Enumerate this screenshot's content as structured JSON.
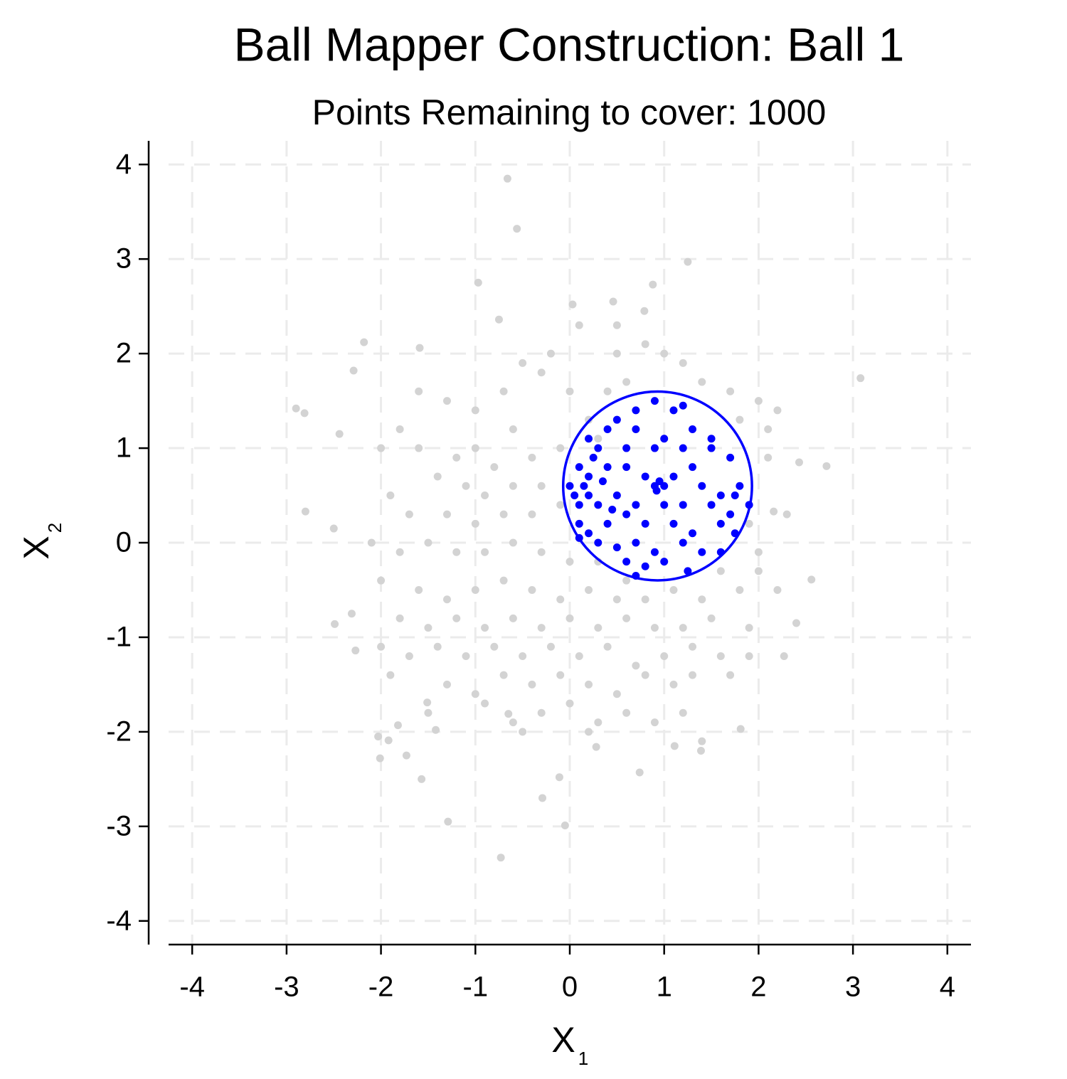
{
  "chart_data": {
    "type": "scatter",
    "title": "Ball Mapper Construction: Ball 1",
    "subtitle": "Points Remaining to cover: 1000",
    "xlabel": {
      "text": "X",
      "subscript": "1"
    },
    "ylabel": {
      "text": "X",
      "subscript": "2"
    },
    "xlim": [
      -4.25,
      4.25
    ],
    "ylim": [
      -4.25,
      4.25
    ],
    "xticks": [
      -4,
      -3,
      -2,
      -1,
      0,
      1,
      2,
      3,
      4
    ],
    "yticks": [
      -4,
      -3,
      -2,
      -1,
      0,
      1,
      2,
      3,
      4
    ],
    "grid": true,
    "series": [
      {
        "color": "#d3d3d3",
        "x": [
          -0.66,
          -0.56,
          1.25,
          -0.97,
          0.88,
          -0.75,
          0.03,
          0.46,
          0.79,
          -2.18,
          -2.29,
          -1.59,
          3.08,
          -2.9,
          -2.81,
          -2.44,
          2.72,
          -2.8,
          -2.5,
          2.43,
          2.56,
          2.16,
          -2.31,
          -2.49,
          -2.27,
          2.4,
          2.27,
          -1.57,
          -1.29,
          -2.01,
          -1.73,
          -0.73,
          -0.05,
          -0.29,
          -0.11,
          0.74,
          1.39,
          1.11,
          1.81,
          -1.42,
          -2.03,
          -1.92,
          -1.82,
          -1.51,
          0.28,
          -0.65,
          -1.6,
          -1.3,
          -1.0,
          -0.7,
          -0.6,
          -0.3,
          -0.5,
          -0.2,
          0.0,
          -1.8,
          -1.6,
          -2.0,
          -1.2,
          -1.0,
          -0.8,
          -0.4,
          -0.1,
          -1.4,
          -1.1,
          -0.9,
          -0.6,
          -0.3,
          -1.9,
          -1.7,
          -1.3,
          -1.0,
          -0.7,
          -0.4,
          -0.1,
          0.1,
          -2.1,
          -1.8,
          -1.5,
          -1.2,
          -0.9,
          -0.6,
          -0.3,
          0.0,
          0.3,
          0.6,
          -2.0,
          -1.6,
          -1.3,
          -1.0,
          -0.7,
          -0.4,
          -0.1,
          0.2,
          0.5,
          0.8,
          1.1,
          1.4,
          1.8,
          2.0,
          -1.8,
          -1.5,
          -1.2,
          -0.9,
          -0.6,
          -0.3,
          0.0,
          0.3,
          0.6,
          0.9,
          1.2,
          1.5,
          1.9,
          -2.0,
          -1.7,
          -1.4,
          -1.1,
          -0.8,
          -0.5,
          -0.2,
          0.1,
          0.4,
          0.7,
          1.0,
          1.3,
          1.6,
          1.9,
          -1.9,
          -1.3,
          -1.0,
          -0.7,
          -0.4,
          -0.1,
          0.2,
          0.5,
          0.8,
          1.1,
          1.3,
          1.7,
          -1.5,
          -0.9,
          -0.6,
          -0.3,
          0.0,
          0.3,
          0.6,
          0.9,
          1.2,
          1.4,
          0.2,
          -0.5,
          2.2,
          2.1,
          1.8,
          1.7,
          2.0,
          2.2,
          1.2,
          1.0,
          0.8,
          0.5,
          0.4,
          0.2,
          0.3,
          0.1,
          0.5,
          0.6,
          1.4,
          2.1,
          1.9,
          2.0,
          2.3,
          1.6
        ],
        "y": [
          3.85,
          3.32,
          2.97,
          2.75,
          2.73,
          2.36,
          2.52,
          2.55,
          2.45,
          2.12,
          1.82,
          2.06,
          1.74,
          1.42,
          1.37,
          1.15,
          0.81,
          0.33,
          0.15,
          0.85,
          -0.39,
          0.33,
          -0.75,
          -0.86,
          -1.14,
          -0.85,
          -1.2,
          -2.5,
          -2.95,
          -2.28,
          -2.25,
          -3.33,
          -2.99,
          -2.7,
          -2.48,
          -2.43,
          -2.2,
          -2.15,
          -1.97,
          -1.98,
          -2.05,
          -2.09,
          -1.93,
          -1.69,
          -2.16,
          -1.81,
          1.6,
          1.5,
          1.4,
          1.6,
          1.2,
          1.8,
          1.9,
          2.0,
          1.6,
          1.2,
          1.0,
          1.0,
          0.9,
          1.0,
          0.8,
          0.9,
          1.0,
          0.7,
          0.6,
          0.5,
          0.6,
          0.6,
          0.5,
          0.3,
          0.3,
          0.2,
          0.3,
          0.3,
          0.4,
          0.2,
          0.0,
          -0.1,
          0.0,
          -0.1,
          -0.1,
          0.0,
          -0.1,
          -0.2,
          -0.2,
          -0.4,
          -0.4,
          -0.5,
          -0.6,
          -0.5,
          -0.4,
          -0.5,
          -0.6,
          -0.5,
          -0.6,
          -0.6,
          -0.5,
          -0.6,
          -0.5,
          -0.3,
          -0.8,
          -0.9,
          -0.8,
          -0.9,
          -0.8,
          -0.9,
          -0.8,
          -0.9,
          -0.8,
          -0.9,
          -0.9,
          -0.8,
          -0.9,
          -1.1,
          -1.2,
          -1.1,
          -1.2,
          -1.1,
          -1.2,
          -1.1,
          -1.2,
          -1.1,
          -1.3,
          -1.2,
          -1.1,
          -1.2,
          -1.2,
          -1.4,
          -1.5,
          -1.6,
          -1.4,
          -1.5,
          -1.4,
          -1.5,
          -1.6,
          -1.4,
          -1.5,
          -1.4,
          -1.4,
          -1.8,
          -1.7,
          -1.9,
          -1.8,
          -1.7,
          -1.9,
          -1.8,
          -1.9,
          -1.8,
          -2.1,
          -2.0,
          -2.0,
          -0.5,
          0.9,
          1.3,
          1.6,
          1.5,
          1.4,
          1.9,
          2.0,
          2.1,
          2.0,
          1.6,
          1.3,
          1.1,
          2.3,
          2.3,
          1.7,
          1.7,
          1.2,
          0.2,
          -0.1,
          0.3,
          -0.3
        ]
      },
      {
        "color": "#0000ff",
        "x": [
          0.9,
          0.7,
          1.1,
          1.2,
          0.5,
          0.4,
          0.7,
          1.0,
          1.3,
          1.5,
          0.2,
          0.3,
          0.6,
          0.9,
          1.2,
          1.5,
          1.7,
          0.1,
          0.2,
          0.4,
          0.6,
          0.8,
          0.9,
          0.95,
          1.0,
          0.92,
          1.1,
          1.3,
          1.4,
          1.6,
          1.8,
          1.9,
          0.0,
          0.05,
          0.15,
          0.2,
          0.1,
          0.3,
          0.5,
          0.7,
          1.0,
          1.2,
          1.5,
          1.7,
          0.1,
          0.2,
          0.4,
          0.6,
          0.8,
          1.1,
          1.3,
          1.6,
          1.75,
          0.3,
          0.5,
          0.7,
          0.9,
          1.2,
          1.4,
          1.6,
          0.6,
          0.8,
          1.0,
          1.25,
          0.7,
          0.1,
          0.25,
          1.75,
          0.35,
          0.45
        ],
        "y": [
          1.5,
          1.4,
          1.4,
          1.45,
          1.3,
          1.2,
          1.2,
          1.1,
          1.2,
          1.1,
          1.1,
          1.0,
          1.0,
          1.0,
          1.0,
          1.0,
          0.9,
          0.8,
          0.7,
          0.8,
          0.8,
          0.7,
          0.6,
          0.65,
          0.6,
          0.55,
          0.7,
          0.8,
          0.6,
          0.5,
          0.6,
          0.4,
          0.6,
          0.5,
          0.6,
          0.5,
          0.4,
          0.4,
          0.5,
          0.4,
          0.4,
          0.4,
          0.4,
          0.3,
          0.2,
          0.1,
          0.2,
          0.3,
          0.2,
          0.2,
          0.1,
          0.2,
          0.1,
          0.0,
          -0.05,
          0.0,
          -0.1,
          0.0,
          -0.1,
          -0.1,
          -0.2,
          -0.25,
          -0.2,
          -0.3,
          -0.35,
          0.05,
          0.9,
          0.5,
          0.65,
          0.35
        ]
      }
    ],
    "ball": {
      "center": [
        0.93,
        0.6
      ],
      "radius": 1,
      "color": "#0000ff"
    }
  }
}
